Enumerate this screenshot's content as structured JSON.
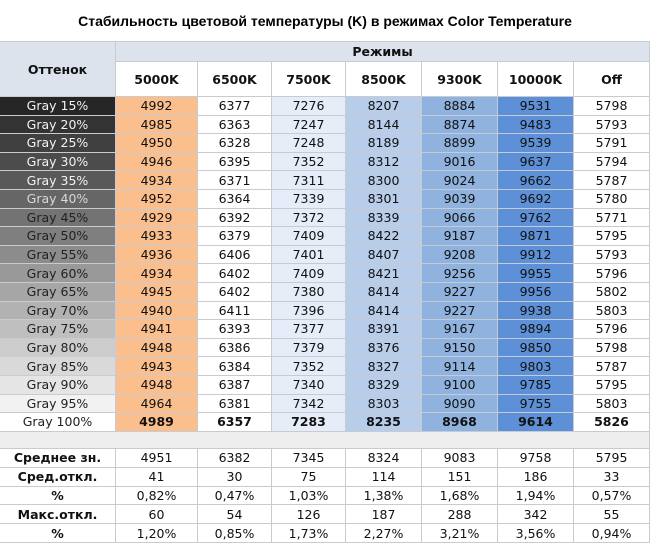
{
  "header": {
    "title": "Стабильность цветовой температуры (K) в режимах Color Temperature"
  },
  "table": {
    "corner": "Оттенок",
    "group": "Режимы",
    "columns": [
      "5000K",
      "6500K",
      "7500K",
      "8500K",
      "9300K",
      "10000K",
      "Off"
    ],
    "rows": [
      [
        "Gray 15%",
        4992,
        6377,
        7276,
        8207,
        8884,
        9531,
        5798
      ],
      [
        "Gray 20%",
        4985,
        6363,
        7247,
        8144,
        8874,
        9483,
        5793
      ],
      [
        "Gray 25%",
        4950,
        6328,
        7248,
        8189,
        8899,
        9539,
        5791
      ],
      [
        "Gray 30%",
        4946,
        6395,
        7352,
        8312,
        9016,
        9637,
        5794
      ],
      [
        "Gray 35%",
        4934,
        6371,
        7311,
        8300,
        9024,
        9662,
        5787
      ],
      [
        "Gray 40%",
        4952,
        6364,
        7339,
        8301,
        9039,
        9692,
        5780
      ],
      [
        "Gray 45%",
        4929,
        6392,
        7372,
        8339,
        9066,
        9762,
        5771
      ],
      [
        "Gray 50%",
        4933,
        6379,
        7409,
        8422,
        9187,
        9871,
        5795
      ],
      [
        "Gray 55%",
        4936,
        6406,
        7401,
        8407,
        9208,
        9912,
        5793
      ],
      [
        "Gray 60%",
        4934,
        6402,
        7409,
        8421,
        9256,
        9955,
        5796
      ],
      [
        "Gray 65%",
        4945,
        6402,
        7380,
        8414,
        9227,
        9956,
        5802
      ],
      [
        "Gray 70%",
        4940,
        6411,
        7396,
        8414,
        9227,
        9938,
        5803
      ],
      [
        "Gray 75%",
        4941,
        6393,
        7377,
        8391,
        9167,
        9894,
        5796
      ],
      [
        "Gray 80%",
        4948,
        6386,
        7379,
        8376,
        9150,
        9850,
        5798
      ],
      [
        "Gray 85%",
        4943,
        6384,
        7352,
        8327,
        9114,
        9803,
        5787
      ],
      [
        "Gray 90%",
        4948,
        6387,
        7340,
        8329,
        9100,
        9785,
        5795
      ],
      [
        "Gray 95%",
        4964,
        6381,
        7342,
        8303,
        9090,
        9755,
        5803
      ],
      [
        "Gray 100%",
        4989,
        6357,
        7283,
        8235,
        8968,
        9614,
        5826
      ]
    ],
    "stats": [
      [
        "Среднее зн.",
        4951,
        6382,
        7345,
        8324,
        9083,
        9758,
        5795
      ],
      [
        "Сред.откл.",
        41,
        30,
        75,
        114,
        151,
        186,
        33
      ],
      [
        "%",
        "0,82%",
        "0,47%",
        "1,03%",
        "1,38%",
        "1,68%",
        "1,94%",
        "0,57%"
      ],
      [
        "Макс.откл.",
        60,
        54,
        126,
        187,
        288,
        342,
        55
      ],
      [
        "%",
        "1,20%",
        "0,85%",
        "1,73%",
        "2,27%",
        "3,21%",
        "3,56%",
        "0,94%"
      ]
    ]
  }
}
